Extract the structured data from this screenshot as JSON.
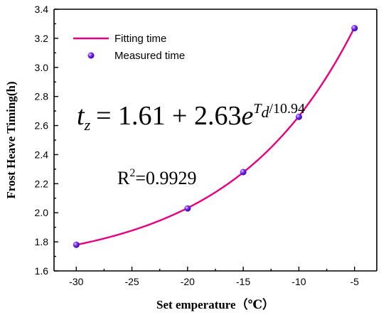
{
  "chart_data": {
    "type": "line",
    "xlabel": "Set emperature（℃）",
    "ylabel": "Frost Heave Timing(h)",
    "xlim": [
      -32,
      -3
    ],
    "ylim": [
      1.6,
      3.4
    ],
    "x_ticks": [
      -30,
      -25,
      -20,
      -15,
      -10,
      -5
    ],
    "y_ticks": [
      1.6,
      1.8,
      2.0,
      2.2,
      2.4,
      2.6,
      2.8,
      3.0,
      3.2,
      3.4
    ],
    "x_tick_labels": [
      "-30",
      "-25",
      "-20",
      "-15",
      "-10",
      "-5"
    ],
    "y_tick_labels": [
      "1.6",
      "1.8",
      "2.0",
      "2.2",
      "2.4",
      "2.6",
      "2.8",
      "3.0",
      "3.2",
      "3.4"
    ],
    "grid": false,
    "legend_position": "top-left",
    "series": [
      {
        "name": "Fitting time",
        "kind": "line",
        "color": "#e6007e",
        "x_range": [
          -30,
          -5
        ],
        "model": {
          "a": 1.61,
          "b": 2.63,
          "c": 10.94
        }
      },
      {
        "name": "Measured time",
        "kind": "scatter",
        "color": "#7b2cff",
        "x": [
          -30,
          -20,
          -15,
          -10,
          -5
        ],
        "y": [
          1.78,
          2.03,
          2.28,
          2.66,
          3.27
        ]
      }
    ],
    "annotations": {
      "equation": {
        "lhs_var": "t",
        "lhs_sub": "z",
        "rhs_pre": "= 1.61 + 2.63",
        "exp_base": "e",
        "exp_var": "T",
        "exp_var_sub": "d",
        "exp_rest": "/10.94"
      },
      "r_squared": {
        "prefix": "R",
        "sup": "2",
        "value": "=0.9929"
      }
    }
  }
}
